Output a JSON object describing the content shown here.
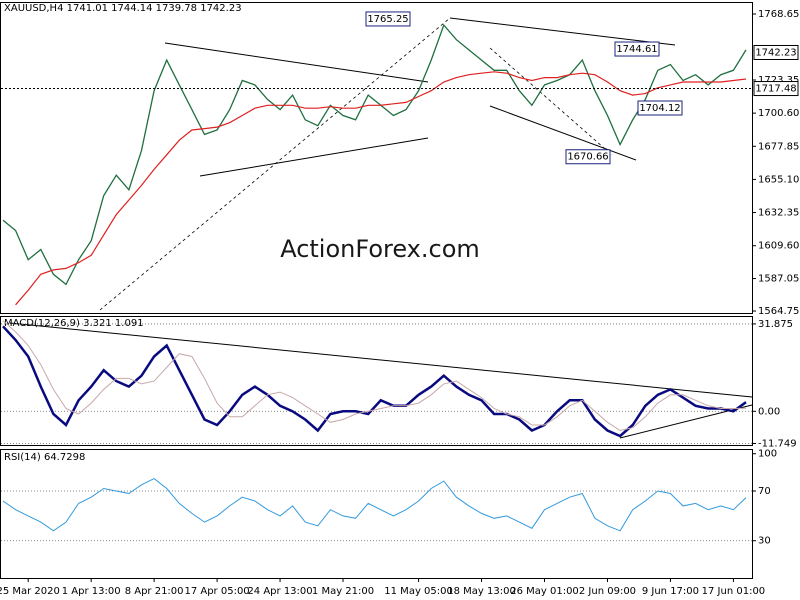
{
  "chart_data": [
    {
      "type": "line",
      "title": "XAUUSD,H4  1741.01 1744.14 1739.78 1742.23",
      "watermark": "ActionForex.com",
      "ylim": [
        1563.4,
        1776.2
      ],
      "yticks": [
        1768.65,
        1723.35,
        {
          "value": 1700.6,
          "label": "1700.60"
        },
        1677.85,
        {
          "value": 1655.1,
          "label": "1655.10"
        },
        1632.35,
        {
          "value": 1609.6,
          "label": "1609.60"
        },
        1587.05,
        1564.75
      ],
      "series": [
        {
          "name": "Price",
          "color": "#1f6f3f",
          "values": [
            1627,
            1620,
            1600,
            1607,
            1590,
            1583,
            1600,
            1613,
            1644,
            1658,
            1648,
            1675,
            1716,
            1737,
            1720,
            1703,
            1686,
            1689,
            1703,
            1723,
            1720,
            1710,
            1703,
            1713,
            1696,
            1692,
            1706,
            1699,
            1696,
            1713,
            1706,
            1699,
            1703,
            1716,
            1737,
            1761,
            1751,
            1744,
            1737,
            1730,
            1730,
            1716,
            1706,
            1720,
            1723,
            1727,
            1737,
            1716,
            1699,
            1679,
            1696,
            1710,
            1730,
            1734,
            1723,
            1727,
            1720,
            1727,
            1730,
            1744
          ]
        },
        {
          "name": "MA",
          "color": "#e02020",
          "values": [
            null,
            1569,
            1579,
            1590,
            1593,
            1594,
            1598,
            1603,
            1617,
            1631,
            1641,
            1651,
            1662,
            1672,
            1682,
            1689,
            1690,
            1691,
            1694,
            1699,
            1704,
            1706,
            1706,
            1706,
            1704,
            1704,
            1705,
            1704,
            1704,
            1706,
            1706,
            1707,
            1708,
            1712,
            1716,
            1722,
            1725,
            1727,
            1728,
            1729,
            1728,
            1725,
            1723,
            1725,
            1725,
            1727,
            1728,
            1727,
            1722,
            1716,
            1713,
            1714,
            1718,
            1720,
            1722,
            1722,
            1722,
            1722,
            1723,
            1724
          ]
        }
      ],
      "annotations": [
        1765.25,
        1744.61,
        1704.12,
        1670.66
      ],
      "price_tags": [
        1742.23,
        1717.48
      ]
    },
    {
      "type": "line",
      "title": "MACD(12,26,9) 3.321 1.091",
      "ylim": [
        -12.3,
        34.4
      ],
      "yticks": [
        31.875,
        {
          "value": 0,
          "label": "0.00"
        },
        -11.749
      ],
      "series": [
        {
          "name": "MACD",
          "color": "#0a0a80",
          "values": [
            31,
            26,
            20,
            9,
            -1,
            -5,
            4,
            9,
            15,
            11,
            9,
            13,
            20,
            24,
            15,
            6,
            -3,
            -5,
            0,
            6,
            9,
            6,
            2,
            0,
            -3,
            -7,
            -1,
            0,
            0,
            -1,
            4,
            2,
            2,
            6,
            9,
            13,
            9,
            6,
            4,
            -1,
            -1,
            -3,
            -7,
            -5,
            0,
            4,
            4,
            -3,
            -7,
            -9,
            -5,
            2,
            6,
            8,
            5,
            2,
            1,
            1,
            0,
            3.321
          ]
        },
        {
          "name": "Signal",
          "color": "#c8a8a8",
          "values": [
            33,
            29,
            24,
            17,
            8,
            1,
            -1,
            3,
            8,
            12,
            12,
            10,
            11,
            16,
            21,
            20,
            12,
            3,
            -2,
            -2,
            2,
            6,
            7,
            5,
            2,
            -1,
            -4,
            -3,
            -1,
            0,
            1,
            2,
            2,
            3,
            6,
            10,
            11,
            8,
            5,
            1,
            -1,
            -2,
            -5,
            -5,
            -2,
            2,
            4,
            0,
            -4,
            -7,
            -6,
            -2,
            3,
            6,
            6,
            4,
            2,
            1,
            1,
            1.091
          ]
        }
      ]
    },
    {
      "type": "line",
      "title": "RSI(14) 64.7298",
      "ylim": [
        0,
        103
      ],
      "yticks": [
        100,
        70,
        30
      ],
      "series": [
        {
          "name": "RSI",
          "color": "#3399dd",
          "values": [
            62,
            55,
            50,
            45,
            38,
            45,
            60,
            65,
            72,
            70,
            68,
            75,
            80,
            72,
            60,
            52,
            45,
            50,
            58,
            65,
            62,
            55,
            50,
            58,
            45,
            42,
            55,
            50,
            48,
            60,
            55,
            50,
            55,
            62,
            72,
            78,
            65,
            58,
            52,
            48,
            50,
            45,
            40,
            55,
            60,
            65,
            68,
            48,
            42,
            38,
            55,
            62,
            70,
            68,
            58,
            60,
            55,
            58,
            55,
            64.7298
          ]
        }
      ],
      "categories": [
        null,
        null,
        "25 Mar 2020",
        null,
        null,
        null,
        null,
        "1 Apr 13:00",
        null,
        null,
        null,
        null,
        "8 Apr 21:00",
        null,
        null,
        null,
        null,
        "17 Apr 05:00",
        null,
        null,
        null,
        null,
        "24 Apr 13:00",
        null,
        null,
        null,
        null,
        "1 May 21:00",
        null,
        null,
        null,
        null,
        null,
        "11 May 05:00",
        null,
        null,
        null,
        null,
        "18 May 13:00",
        null,
        null,
        null,
        null,
        "26 May 01:00",
        null,
        null,
        null,
        null,
        "2 Jun 09:00",
        null,
        null,
        null,
        null,
        "9 Jun 17:00",
        null,
        null,
        null,
        null,
        "17 Jun 01:00",
        null
      ]
    }
  ]
}
